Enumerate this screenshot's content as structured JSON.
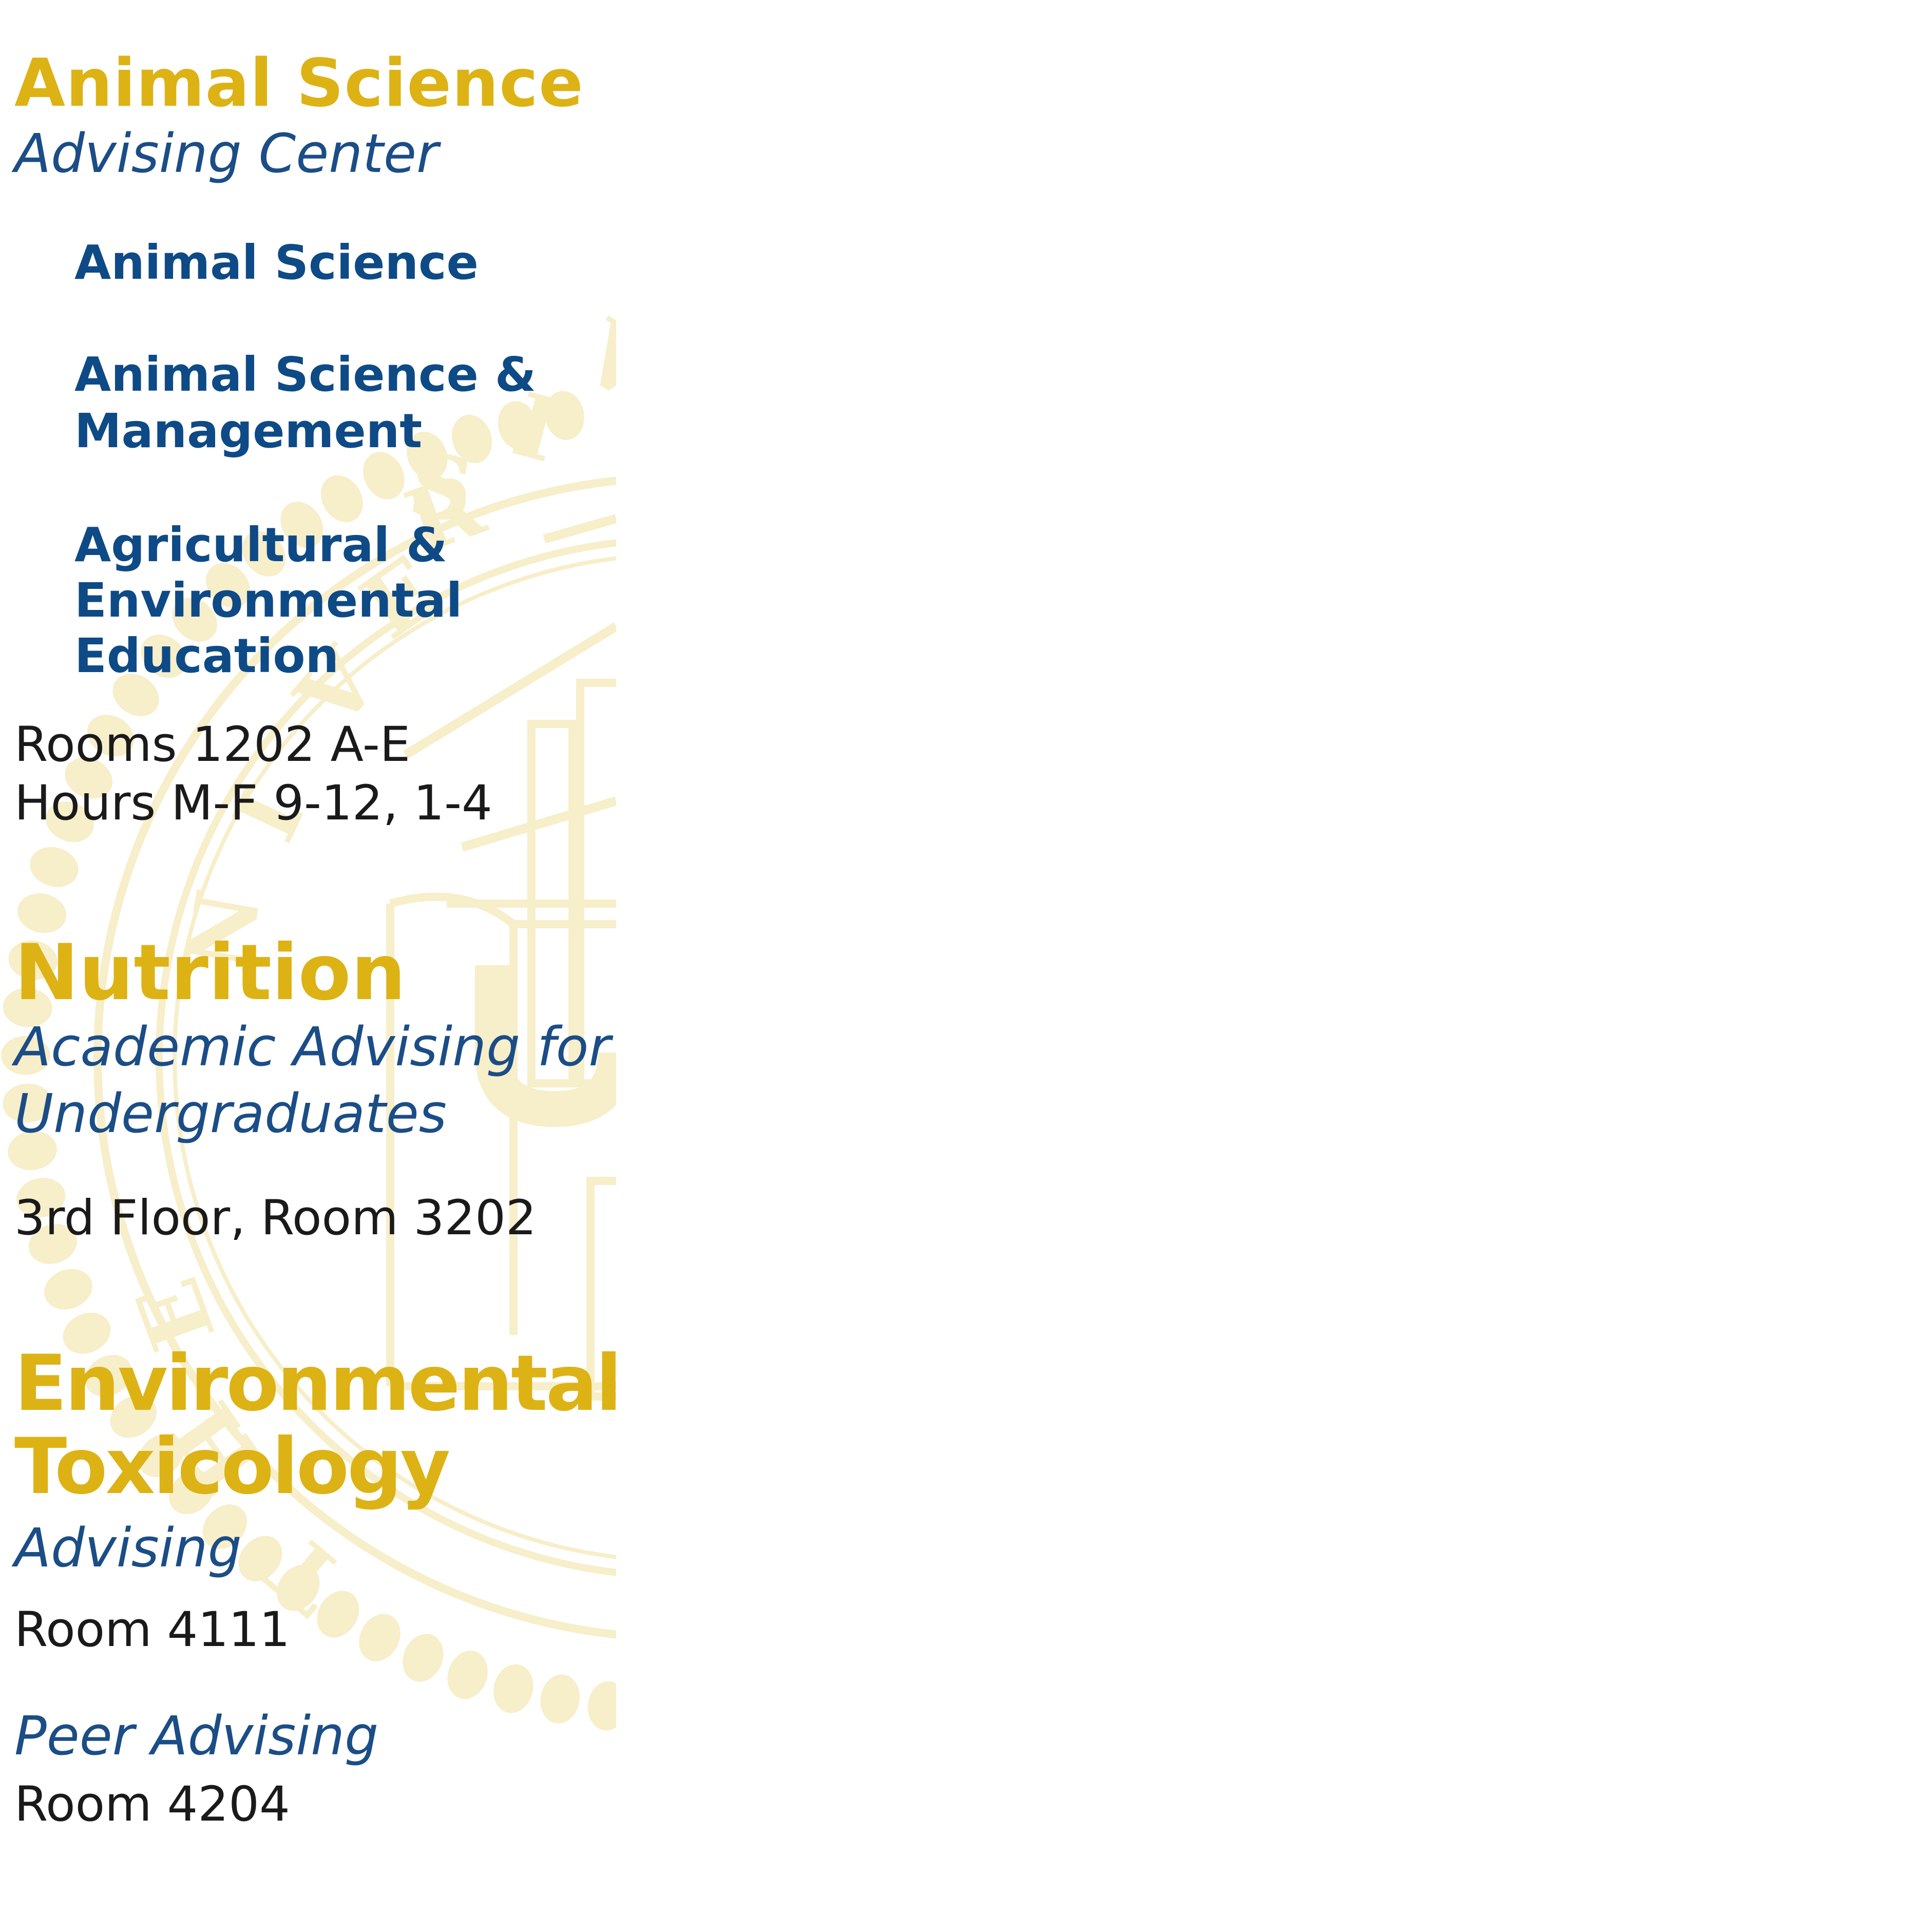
{
  "colors": {
    "gold": "#DDB214",
    "blue": "#0E4A86",
    "seal": "#F7EECA",
    "text": "#1a1a1a"
  },
  "seal": {
    "letters": [
      "R",
      "S",
      "I",
      "E",
      "V",
      "N",
      "T",
      "Y",
      "U",
      "H"
    ],
    "icon": "university-seal-watermark"
  },
  "animal_science": {
    "title": "Animal Science",
    "subtitle": "Advising Center",
    "majors": [
      {
        "line1": "Animal Science",
        "line2": "",
        "line3": ""
      },
      {
        "line1": "Animal Science &",
        "line2": "Management",
        "line3": ""
      },
      {
        "line1": "Agricultural &",
        "line2": "Environmental",
        "line3": "Education"
      }
    ],
    "rooms": "Rooms 1202 A-E",
    "hours": "Hours M-F 9-12, 1-4"
  },
  "nutrition": {
    "title": "Nutrition",
    "subtitle_line1": "Academic Advising for",
    "subtitle_line2": "Undergraduates",
    "location": "3rd Floor, Room 3202"
  },
  "env_tox": {
    "title_line1": "Environmental",
    "title_line2": "Toxicology",
    "advising_label": "Advising",
    "advising_room": "Room 4111",
    "peer_label": "Peer Advising",
    "peer_room": "Room 4204"
  }
}
